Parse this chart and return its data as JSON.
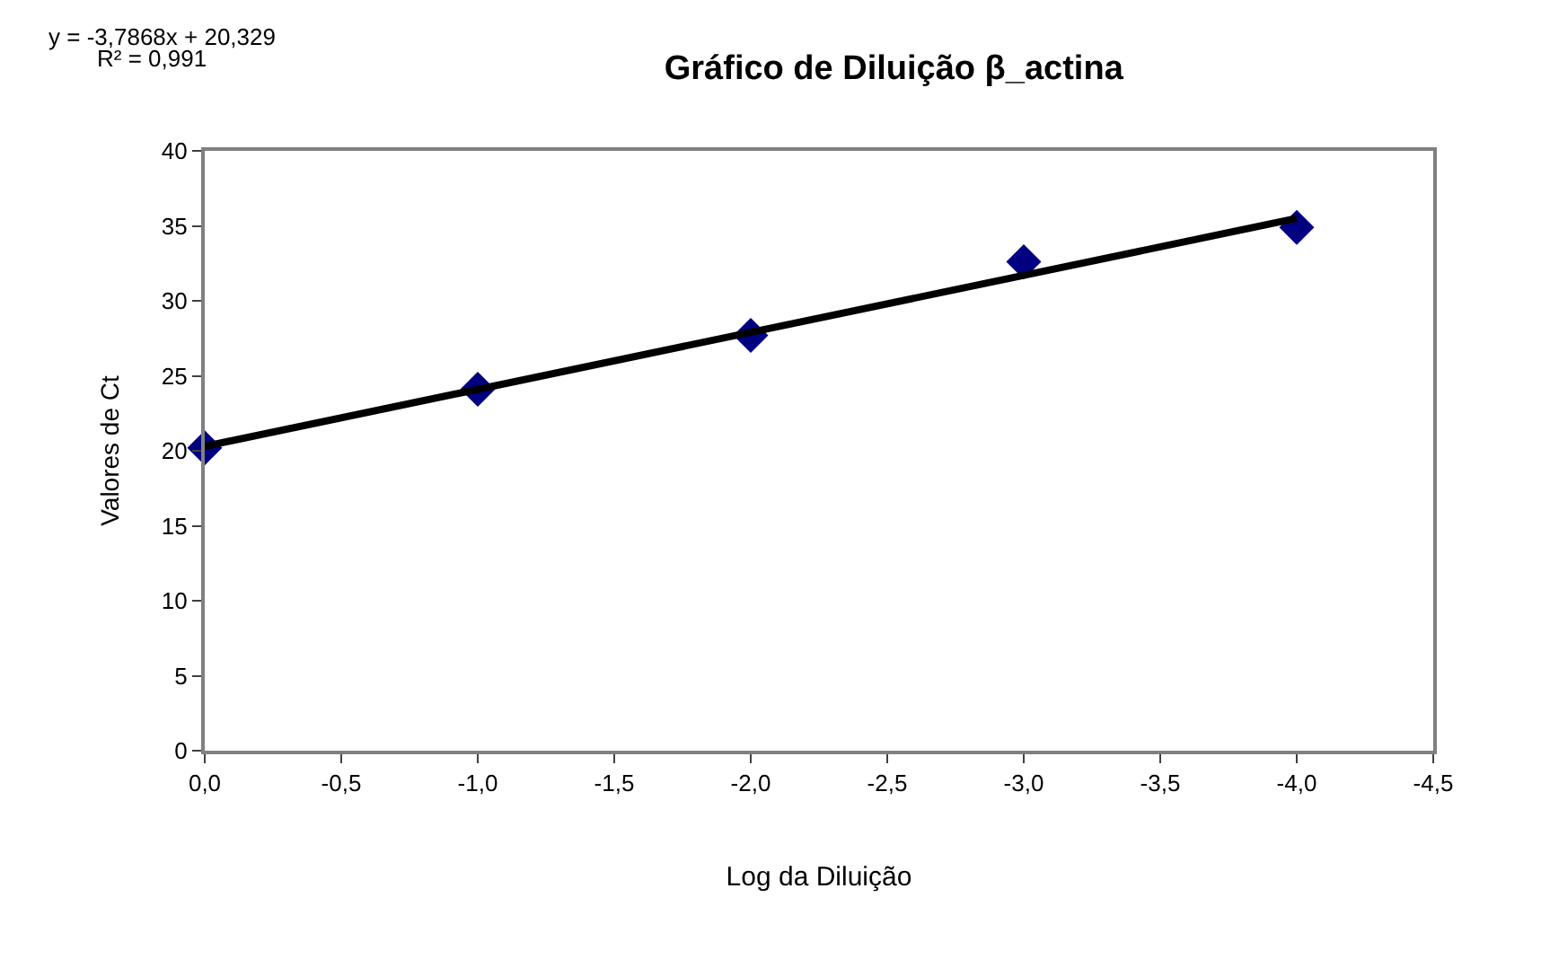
{
  "chart_data": {
    "type": "scatter",
    "title": "Gráfico de Diluição β_actina",
    "xlabel": "Log da Diluição",
    "ylabel": "Valores de Ct",
    "annotations": [
      "y = -3,7868x + 20,329",
      "R² = 0,991"
    ],
    "series": [
      {
        "color": "#000080",
        "marker": "diamond",
        "x": [
          0,
          -1,
          -2,
          -3,
          -4
        ],
        "values": [
          20.2,
          24.1,
          27.7,
          32.6,
          34.9
        ]
      },
      {
        "type": "line",
        "color": "#000000",
        "marker": "none",
        "line_style": "solid",
        "x": [
          0,
          -4
        ],
        "values": [
          20.3,
          35.5
        ]
      }
    ],
    "xlim": [
      0,
      -4.5
    ],
    "xticks": [
      {
        "value": 0,
        "label": "0,0"
      },
      {
        "value": -0.5,
        "label": "-0,5"
      },
      {
        "value": -1,
        "label": "-1,0"
      },
      {
        "value": -1.5,
        "label": "-1,5"
      },
      {
        "value": -2,
        "label": "-2,0"
      },
      {
        "value": -2.5,
        "label": "-2,5"
      },
      {
        "value": -3,
        "label": "-3,0"
      },
      {
        "value": -3.5,
        "label": "-3,5"
      },
      {
        "value": -4,
        "label": "-4,0"
      },
      {
        "value": -4.5,
        "label": "-4,5"
      }
    ],
    "ylim": [
      0,
      40
    ],
    "yticks": [
      0,
      5,
      10,
      15,
      20,
      25,
      30,
      35,
      40
    ]
  }
}
